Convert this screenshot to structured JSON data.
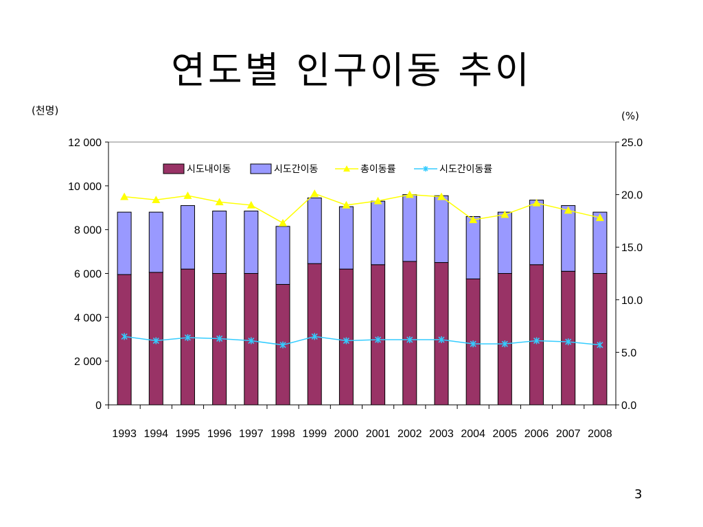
{
  "slide": {
    "title": "연도별 인구이동 추이",
    "page_number": "3"
  },
  "colors": {
    "intra": "#993366",
    "inter": "#9999ff",
    "total_rate": "#ffff00",
    "inter_rate": "#33ccff"
  },
  "chart_data": {
    "type": "bar",
    "stacked": true,
    "title": "",
    "left_unit_label": "(천명)",
    "right_unit_label": "(%)",
    "categories": [
      "1993",
      "1994",
      "1995",
      "1996",
      "1997",
      "1998",
      "1999",
      "2000",
      "2001",
      "2002",
      "2003",
      "2004",
      "2005",
      "2006",
      "2007",
      "2008"
    ],
    "y_left": {
      "lim": [
        0,
        12000
      ],
      "ticks": [
        0,
        2000,
        4000,
        6000,
        8000,
        10000,
        12000
      ],
      "tick_labels": [
        "0",
        "2 000",
        "4 000",
        "6 000",
        "8 000",
        "10 000",
        "12 000"
      ]
    },
    "y_right": {
      "lim": [
        0,
        25
      ],
      "ticks": [
        0,
        5,
        10,
        15,
        20,
        25
      ],
      "tick_labels": [
        "0.0",
        "5.0",
        "10.0",
        "15.0",
        "20.0",
        "25.0"
      ]
    },
    "legend_position": "top",
    "series": [
      {
        "name": "시도내이동",
        "kind": "bar",
        "axis": "left",
        "values": [
          5950,
          6050,
          6200,
          6000,
          6000,
          5500,
          6450,
          6200,
          6400,
          6550,
          6500,
          5750,
          6000,
          6400,
          6100,
          6000
        ]
      },
      {
        "name": "시도간이동",
        "kind": "bar",
        "axis": "left",
        "values": [
          2850,
          2750,
          2900,
          2850,
          2850,
          2650,
          3000,
          2850,
          2900,
          3050,
          3050,
          2850,
          2800,
          2950,
          3000,
          2800
        ]
      },
      {
        "name": "총이동률",
        "kind": "line",
        "marker": "triangle",
        "axis": "right",
        "values": [
          19.8,
          19.5,
          19.9,
          19.3,
          19.0,
          17.3,
          20.1,
          19.0,
          19.4,
          20.0,
          19.8,
          17.6,
          18.1,
          19.2,
          18.5,
          17.8
        ]
      },
      {
        "name": "시도간이동률",
        "kind": "line",
        "marker": "asterisk",
        "axis": "right",
        "values": [
          6.5,
          6.1,
          6.4,
          6.3,
          6.1,
          5.7,
          6.5,
          6.1,
          6.2,
          6.2,
          6.2,
          5.8,
          5.8,
          6.1,
          6.0,
          5.7
        ]
      }
    ]
  }
}
